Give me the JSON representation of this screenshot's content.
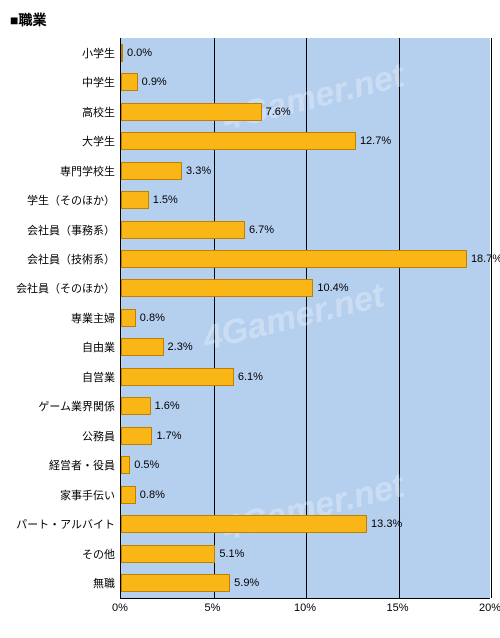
{
  "title": "■職業",
  "chart": {
    "type": "bar",
    "orientation": "horizontal",
    "xlim": [
      0,
      20
    ],
    "xtick_step": 5,
    "xtick_labels": [
      "0%",
      "5%",
      "10%",
      "15%",
      "20%"
    ],
    "background_color": "#b5cfef",
    "grid_color": "#000000",
    "bar_color": "#f9b616",
    "bar_border_color": "#bf8000",
    "label_fontsize": 11,
    "categories": [
      "小学生",
      "中学生",
      "高校生",
      "大学生",
      "専門学校生",
      "学生（そのほか）",
      "会社員（事務系）",
      "会社員（技術系）",
      "会社員（そのほか）",
      "専業主婦",
      "自由業",
      "自営業",
      "ゲーム業界関係",
      "公務員",
      "経営者・役員",
      "家事手伝い",
      "パート・アルバイト",
      "その他",
      "無職"
    ],
    "values": [
      0.0,
      0.9,
      7.6,
      12.7,
      3.3,
      1.5,
      6.7,
      18.7,
      10.4,
      0.8,
      2.3,
      6.1,
      1.6,
      1.7,
      0.5,
      0.8,
      13.3,
      5.1,
      5.9
    ],
    "value_suffix": "%",
    "watermark_text": "4Gamer.net"
  }
}
